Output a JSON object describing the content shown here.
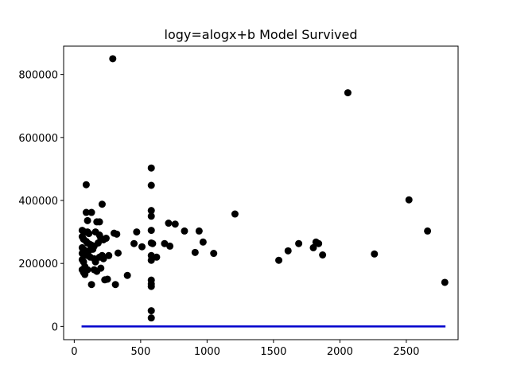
{
  "chart_data": {
    "type": "scatter",
    "title": "logy=alogx+b Model Survived",
    "xlabel": "",
    "ylabel": "",
    "xlim": [
      -80,
      2890
    ],
    "ylim": [
      -42000,
      890000
    ],
    "xticks": [
      0,
      500,
      1000,
      1500,
      2000,
      2500
    ],
    "xtick_labels": [
      "0",
      "500",
      "1000",
      "1500",
      "2000",
      "2500"
    ],
    "yticks": [
      0,
      200000,
      400000,
      600000,
      800000
    ],
    "ytick_labels": [
      "0",
      "200000",
      "400000",
      "600000",
      "800000"
    ],
    "grid": false,
    "legend": "none",
    "colors": {
      "points": "#000000",
      "fit_line": "#0000cc"
    },
    "series": [
      {
        "points": [
          [
            290,
            850000
          ],
          [
            2060,
            742000
          ],
          [
            90,
            450000
          ],
          [
            90,
            362000
          ],
          [
            130,
            362000
          ],
          [
            100,
            336000
          ],
          [
            170,
            332000
          ],
          [
            190,
            332000
          ],
          [
            210,
            388000
          ],
          [
            60,
            305000
          ],
          [
            80,
            300000
          ],
          [
            100,
            300000
          ],
          [
            110,
            295000
          ],
          [
            160,
            300000
          ],
          [
            190,
            290000
          ],
          [
            200,
            280000
          ],
          [
            220,
            275000
          ],
          [
            240,
            280000
          ],
          [
            300,
            296000
          ],
          [
            320,
            293000
          ],
          [
            60,
            285000
          ],
          [
            70,
            277000
          ],
          [
            90,
            270000
          ],
          [
            100,
            265000
          ],
          [
            120,
            260000
          ],
          [
            130,
            258000
          ],
          [
            150,
            255000
          ],
          [
            180,
            265000
          ],
          [
            60,
            250000
          ],
          [
            70,
            245000
          ],
          [
            80,
            240000
          ],
          [
            90,
            235000
          ],
          [
            110,
            240000
          ],
          [
            140,
            245000
          ],
          [
            60,
            232000
          ],
          [
            80,
            228000
          ],
          [
            100,
            225000
          ],
          [
            120,
            220000
          ],
          [
            150,
            215000
          ],
          [
            160,
            205000
          ],
          [
            190,
            220000
          ],
          [
            210,
            225000
          ],
          [
            220,
            215000
          ],
          [
            260,
            225000
          ],
          [
            60,
            212000
          ],
          [
            70,
            205000
          ],
          [
            80,
            190000
          ],
          [
            100,
            180000
          ],
          [
            150,
            180000
          ],
          [
            170,
            175000
          ],
          [
            200,
            185000
          ],
          [
            60,
            180000
          ],
          [
            70,
            172000
          ],
          [
            80,
            165000
          ],
          [
            130,
            133000
          ],
          [
            230,
            148000
          ],
          [
            250,
            150000
          ],
          [
            310,
            133000
          ],
          [
            330,
            233000
          ],
          [
            400,
            162000
          ],
          [
            450,
            263000
          ],
          [
            470,
            300000
          ],
          [
            510,
            253000
          ],
          [
            580,
            503000
          ],
          [
            580,
            448000
          ],
          [
            580,
            368000
          ],
          [
            580,
            350000
          ],
          [
            580,
            305000
          ],
          [
            580,
            265000
          ],
          [
            590,
            263000
          ],
          [
            580,
            225000
          ],
          [
            620,
            220000
          ],
          [
            580,
            210000
          ],
          [
            580,
            147000
          ],
          [
            580,
            135000
          ],
          [
            580,
            127000
          ],
          [
            580,
            50000
          ],
          [
            580,
            27000
          ],
          [
            680,
            263000
          ],
          [
            710,
            328000
          ],
          [
            720,
            255000
          ],
          [
            760,
            325000
          ],
          [
            830,
            303000
          ],
          [
            910,
            235000
          ],
          [
            940,
            303000
          ],
          [
            970,
            268000
          ],
          [
            1050,
            232000
          ],
          [
            1210,
            357000
          ],
          [
            1540,
            210000
          ],
          [
            1610,
            240000
          ],
          [
            1690,
            263000
          ],
          [
            1800,
            250000
          ],
          [
            1820,
            268000
          ],
          [
            1840,
            263000
          ],
          [
            1870,
            227000
          ],
          [
            2260,
            230000
          ],
          [
            2520,
            402000
          ],
          [
            2660,
            303000
          ],
          [
            2790,
            140000
          ]
        ]
      }
    ],
    "fit_line": {
      "x": [
        55,
        2795
      ],
      "y": [
        0,
        0
      ]
    }
  }
}
